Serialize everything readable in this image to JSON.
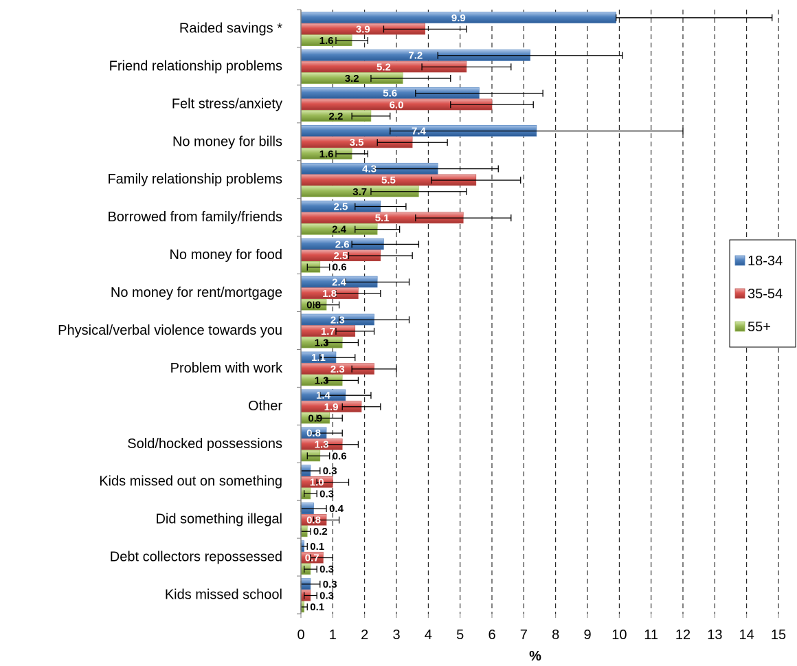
{
  "chart_data": {
    "type": "bar",
    "orientation": "horizontal",
    "xlabel": "%",
    "xlim": [
      0,
      15
    ],
    "xticks": [
      "0",
      "1",
      "2",
      "3",
      "4",
      "5",
      "6",
      "7",
      "8",
      "9",
      "10",
      "11",
      "12",
      "13",
      "14",
      "15"
    ],
    "grid": "vertical dashed",
    "legend_position": "right",
    "categories": [
      "Raided savings *",
      "Friend relationship problems",
      "Felt stress/anxiety",
      "No money for bills",
      "Family relationship problems",
      "Borrowed from family/friends",
      "No money for food",
      "No money for rent/mortgage",
      "Physical/verbal violence towards you",
      "Problem with work",
      "Other",
      "Sold/hocked possessions",
      "Kids missed out on something",
      "Did something illegal",
      "Debt collectors repossessed",
      "Kids missed school"
    ],
    "series": [
      {
        "name": "18-34",
        "color": "#4F81BD",
        "values": [
          9.9,
          7.2,
          5.6,
          7.4,
          4.3,
          2.5,
          2.6,
          2.4,
          2.3,
          1.1,
          1.4,
          0.8,
          0.3,
          0.4,
          0.1,
          0.3
        ],
        "labels": [
          "9.9",
          "7.2",
          "5.6",
          "7.4",
          "4.3",
          "2.5",
          "2.6",
          "2.4",
          "2.3",
          "1.1",
          "1.4",
          "0.8",
          "0.3",
          "0.4",
          "0.1",
          "0.3"
        ],
        "err_low": [
          9.9,
          4.3,
          3.6,
          2.8,
          2.3,
          1.7,
          1.6,
          1.4,
          1.2,
          0.6,
          0.6,
          0.3,
          0.0,
          0.0,
          0.0,
          0.0
        ],
        "err_high": [
          14.8,
          10.1,
          7.6,
          12.0,
          6.2,
          3.3,
          3.7,
          3.4,
          3.4,
          1.7,
          2.2,
          1.3,
          0.6,
          0.8,
          0.2,
          0.6
        ]
      },
      {
        "name": "35-54",
        "color": "#C0504D",
        "values": [
          3.9,
          5.2,
          6.0,
          3.5,
          5.5,
          5.1,
          2.5,
          1.8,
          1.7,
          2.3,
          1.9,
          1.3,
          1.0,
          0.8,
          0.7,
          0.3
        ],
        "labels": [
          "3.9",
          "5.2",
          "6.0",
          "3.5",
          "5.5",
          "5.1",
          "2.5",
          "1.8",
          "1.7",
          "2.3",
          "1.9",
          "1.3",
          "1.0",
          "0.8",
          "0.7",
          "0.3"
        ],
        "err_low": [
          2.6,
          3.8,
          4.7,
          2.4,
          4.1,
          3.6,
          1.5,
          1.1,
          1.1,
          1.6,
          1.3,
          0.8,
          0.5,
          0.4,
          0.3,
          0.1
        ],
        "err_high": [
          5.2,
          6.6,
          7.3,
          4.6,
          6.9,
          6.6,
          3.5,
          2.5,
          2.3,
          3.0,
          2.5,
          1.8,
          1.5,
          1.2,
          1.0,
          0.5
        ]
      },
      {
        "name": "55+",
        "color": "#9BBB59",
        "values": [
          1.6,
          3.2,
          2.2,
          1.6,
          3.7,
          2.4,
          0.6,
          0.8,
          1.3,
          1.3,
          0.9,
          0.6,
          0.3,
          0.2,
          0.3,
          0.1
        ],
        "labels": [
          "1.6",
          "3.2",
          "2.2",
          "1.6",
          "3.7",
          "2.4",
          "0.6",
          "0.8",
          "1.3",
          "1.3",
          "0.9",
          "0.6",
          "0.3",
          "0.2",
          "0.3",
          "0.1"
        ],
        "err_low": [
          1.1,
          2.2,
          1.6,
          1.1,
          2.2,
          1.7,
          0.2,
          0.4,
          0.8,
          0.8,
          0.5,
          0.2,
          0.1,
          0.0,
          0.1,
          0.0
        ],
        "err_high": [
          2.1,
          4.7,
          2.8,
          2.1,
          5.2,
          3.1,
          0.9,
          1.2,
          1.8,
          1.8,
          1.3,
          0.9,
          0.5,
          0.3,
          0.5,
          0.2
        ]
      }
    ]
  }
}
